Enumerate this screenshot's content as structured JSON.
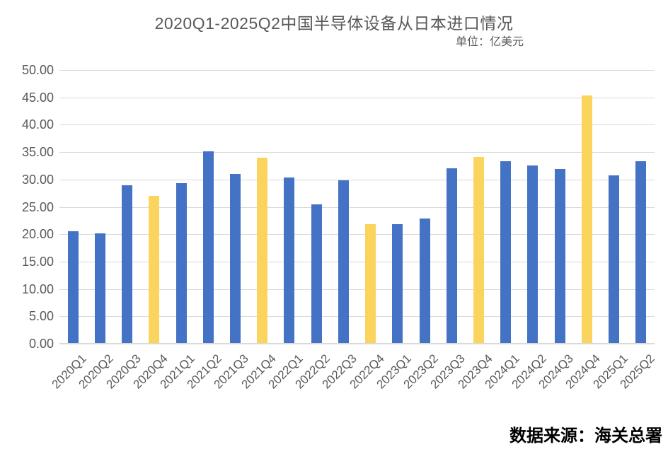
{
  "chart_data": {
    "type": "bar",
    "title": "2020Q1-2025Q2中国半导体设备从日本进口情况",
    "subtitle": "单位：亿美元",
    "source": "数据来源：海关总署",
    "categories": [
      "2020Q1",
      "2020Q2",
      "2020Q3",
      "2020Q4",
      "2021Q1",
      "2021Q2",
      "2021Q3",
      "2021Q4",
      "2022Q1",
      "2022Q2",
      "2022Q3",
      "2022Q4",
      "2023Q1",
      "2023Q2",
      "2023Q3",
      "2023Q4",
      "2024Q1",
      "2024Q2",
      "2024Q3",
      "2024Q4",
      "2025Q1",
      "2025Q2"
    ],
    "values": [
      20.5,
      20.2,
      29.0,
      27.0,
      29.3,
      35.2,
      31.0,
      34.0,
      30.3,
      25.4,
      29.8,
      21.9,
      21.9,
      22.9,
      32.0,
      34.1,
      33.3,
      32.6,
      31.9,
      45.3,
      30.7,
      33.3
    ],
    "highlight_categories": [
      "2020Q4",
      "2021Q4",
      "2022Q4",
      "2023Q4",
      "2024Q4"
    ],
    "xlabel": "",
    "ylabel": "",
    "ylim": [
      0,
      50
    ],
    "y_tick_step": 5,
    "y_tick_labels": [
      "0.00",
      "5.00",
      "10.00",
      "15.00",
      "20.00",
      "25.00",
      "30.00",
      "35.00",
      "40.00",
      "45.00",
      "50.00"
    ],
    "grid": true,
    "legend": false,
    "colors": {
      "bar_default": "#4472C4",
      "bar_highlight": "#FBD45E",
      "gridline": "#D9D9D9",
      "axis_text": "#595959",
      "title_text": "#595959",
      "source_text": "#000000"
    }
  }
}
